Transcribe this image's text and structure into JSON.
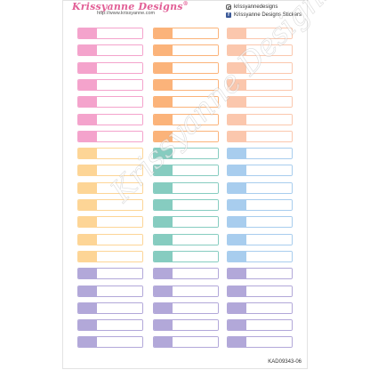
{
  "header": {
    "brand": "Krissyanne Designs",
    "trademark": "®",
    "url": "http://www.krissyanne.com",
    "instagram_handle": "krissyannedesigns",
    "facebook_page": "Krissyanne Designs Stickers"
  },
  "watermark": "Krissyanne Designs",
  "product_code": "KAD09343-06",
  "colors": {
    "pink": "#f4a3cc",
    "orange": "#fbb37a",
    "peach": "#fbc7ad",
    "yellow": "#fdd596",
    "teal": "#86ccc0",
    "blue": "#a8cdee",
    "lavender": "#b2a8d9"
  },
  "columns": [
    {
      "name": "left",
      "stickers": [
        "pink",
        "pink",
        "pink",
        "pink",
        "pink",
        "pink",
        "pink",
        "yellow",
        "yellow",
        "yellow",
        "yellow",
        "yellow",
        "yellow",
        "yellow",
        "lavender",
        "lavender",
        "lavender",
        "lavender",
        "lavender"
      ]
    },
    {
      "name": "middle",
      "stickers": [
        "orange",
        "orange",
        "orange",
        "orange",
        "orange",
        "orange",
        "orange",
        "teal",
        "teal",
        "teal",
        "teal",
        "teal",
        "teal",
        "teal",
        "lavender",
        "lavender",
        "lavender",
        "lavender",
        "lavender"
      ]
    },
    {
      "name": "right",
      "stickers": [
        "peach",
        "peach",
        "peach",
        "peach",
        "peach",
        "peach",
        "peach",
        "blue",
        "blue",
        "blue",
        "blue",
        "blue",
        "blue",
        "blue",
        "lavender",
        "lavender",
        "lavender",
        "lavender",
        "lavender"
      ]
    }
  ]
}
